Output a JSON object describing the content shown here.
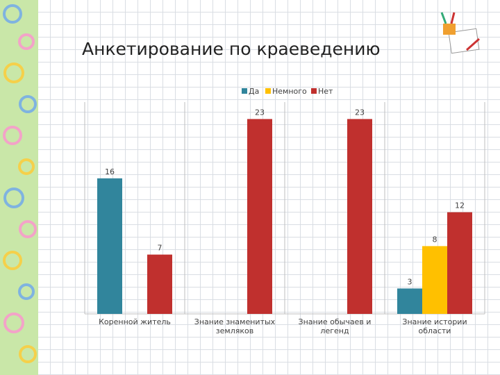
{
  "chart_data": {
    "type": "bar",
    "title": "Анкетирование по краеведению",
    "categories": [
      "Коренной житель",
      "Знание знаменитых земляков",
      "Знание обычаев и легенд",
      "Знание истории области"
    ],
    "series": [
      {
        "name": "Да",
        "color": "#31859c",
        "values": [
          16,
          null,
          null,
          3
        ]
      },
      {
        "name": "Немного",
        "color": "#ffc000",
        "values": [
          null,
          null,
          null,
          8
        ]
      },
      {
        "name": "Нет",
        "color": "#c0302e",
        "values": [
          7,
          23,
          23,
          12
        ]
      }
    ],
    "ylim": [
      0,
      25
    ],
    "legend": "top"
  }
}
